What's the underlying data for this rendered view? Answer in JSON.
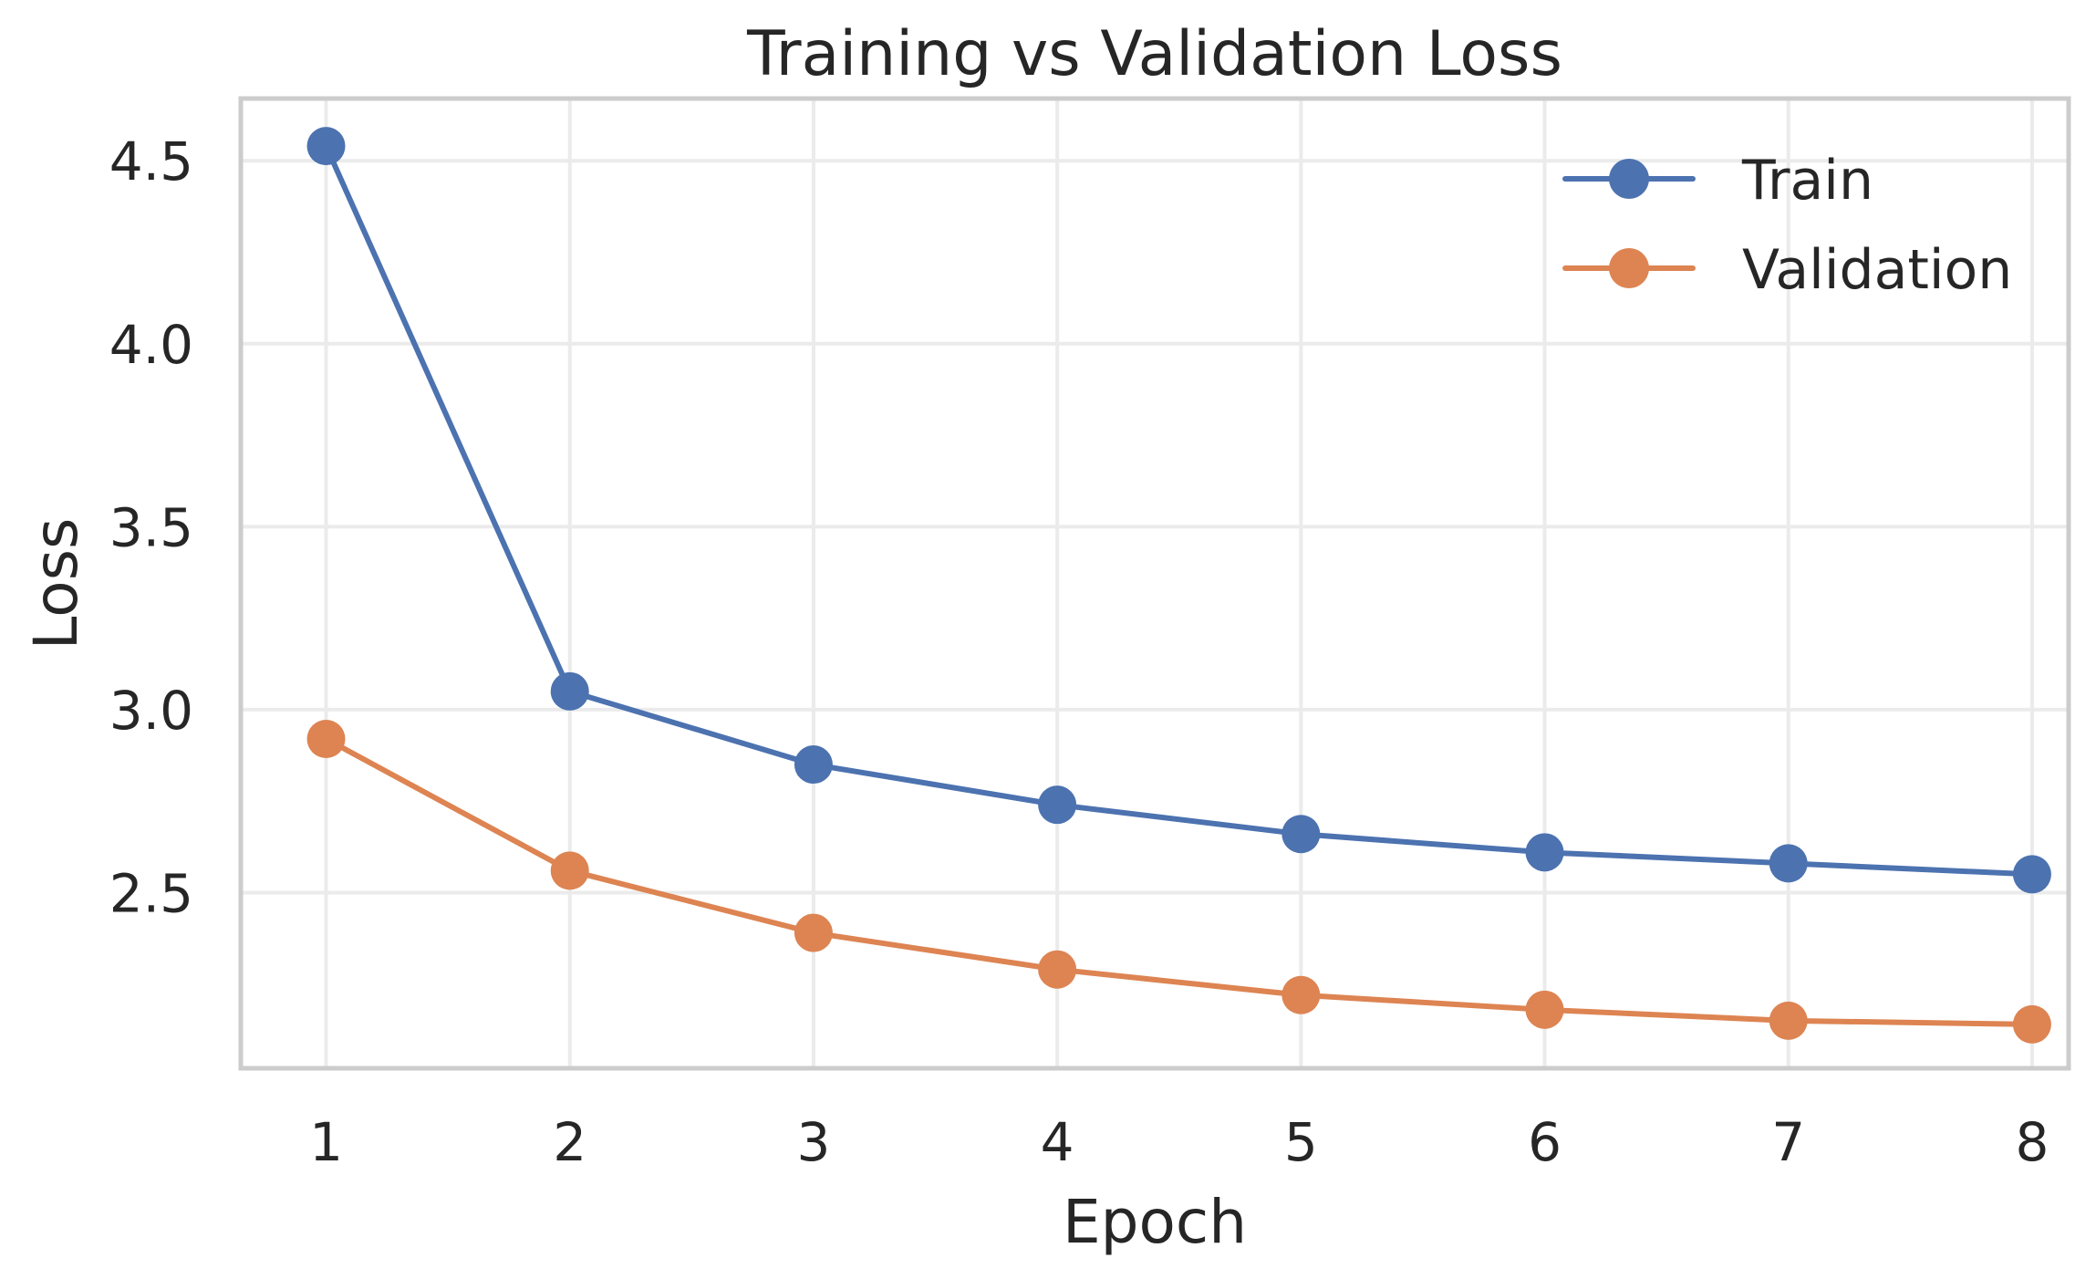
{
  "chart_data": {
    "type": "line",
    "title": "Training vs Validation Loss",
    "xlabel": "Epoch",
    "ylabel": "Loss",
    "x": [
      1,
      2,
      3,
      4,
      5,
      6,
      7,
      8
    ],
    "xticks": [
      "1",
      "2",
      "3",
      "4",
      "5",
      "6",
      "7",
      "8"
    ],
    "yticks": [
      "2.5",
      "3.0",
      "3.5",
      "4.0",
      "4.5"
    ],
    "ytick_values": [
      2.5,
      3.0,
      3.5,
      4.0,
      4.5
    ],
    "xlim": [
      0.65,
      8.15
    ],
    "ylim": [
      2.02,
      4.67
    ],
    "grid": true,
    "legend_position": "top-right",
    "series": [
      {
        "name": "Train",
        "color": "#4c72b0",
        "values": [
          4.54,
          3.05,
          2.85,
          2.74,
          2.66,
          2.61,
          2.58,
          2.55
        ]
      },
      {
        "name": "Validation",
        "color": "#dd8452",
        "values": [
          2.92,
          2.56,
          2.39,
          2.29,
          2.22,
          2.18,
          2.15,
          2.14
        ]
      }
    ]
  }
}
